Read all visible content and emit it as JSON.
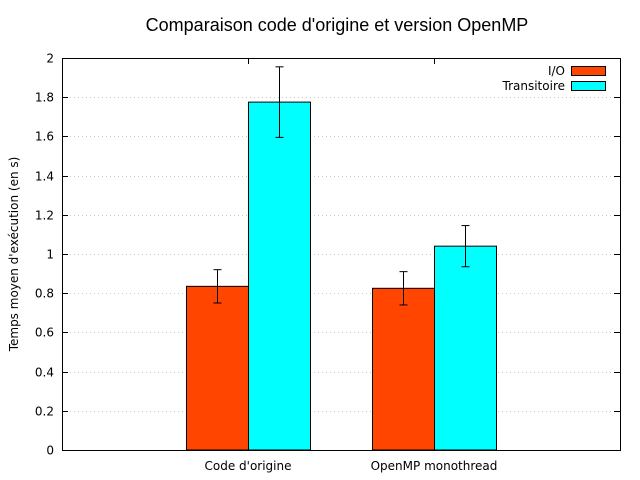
{
  "chart_data": {
    "type": "bar",
    "title": "Comparaison code d'origine et version OpenMP",
    "xlabel": "",
    "ylabel": "Temps moyen d'exécution (en s)",
    "ylim": [
      0,
      2
    ],
    "yticks": [
      "0",
      "0.2",
      "0.4",
      "0.6",
      "0.8",
      "1",
      "1.2",
      "1.4",
      "1.6",
      "1.8",
      "2"
    ],
    "categories": [
      "Code d'origine",
      "OpenMP monothread"
    ],
    "series": [
      {
        "name": "I/O",
        "color": "#ff4500",
        "values": [
          0.835,
          0.825
        ],
        "error_low": [
          0.75,
          0.74
        ],
        "error_high": [
          0.92,
          0.91
        ]
      },
      {
        "name": "Transitoire",
        "color": "#00ffff",
        "values": [
          1.775,
          1.04
        ],
        "error_low": [
          1.595,
          0.935
        ],
        "error_high": [
          1.955,
          1.145
        ]
      }
    ],
    "grid": "horizontal dotted",
    "legend_position": "top-right"
  }
}
